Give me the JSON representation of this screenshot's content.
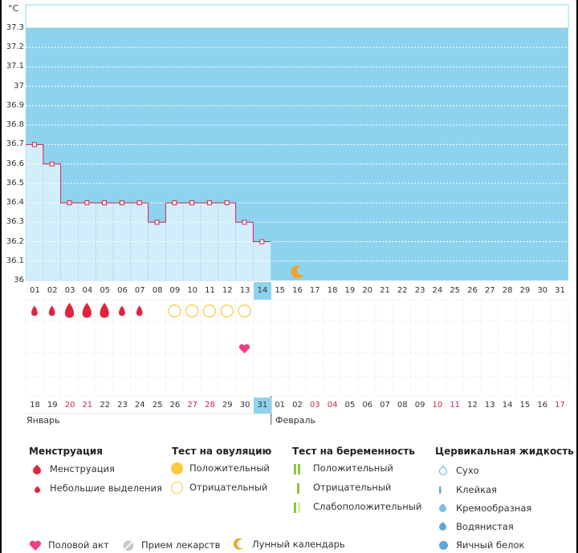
{
  "chart": {
    "unit": "°C",
    "y_labels": [
      "37.3",
      "37.2",
      "37.1",
      "37",
      "36.9",
      "36.8",
      "36.7",
      "36.6",
      "36.5",
      "36.4",
      "36.3",
      "36.2",
      "36.1",
      "36"
    ],
    "cycle_days": [
      "01",
      "02",
      "03",
      "04",
      "05",
      "06",
      "07",
      "08",
      "09",
      "10",
      "11",
      "12",
      "13",
      "14",
      "15",
      "16",
      "17",
      "18",
      "19",
      "20",
      "21",
      "22",
      "23",
      "24",
      "25",
      "26",
      "27",
      "28",
      "29",
      "30",
      "31"
    ],
    "today_cycle_day": "14",
    "dates": [
      "18",
      "19",
      "20",
      "21",
      "22",
      "23",
      "24",
      "25",
      "26",
      "27",
      "28",
      "29",
      "30",
      "31",
      "01",
      "02",
      "03",
      "04",
      "05",
      "06",
      "07",
      "08",
      "09",
      "10",
      "11",
      "12",
      "13",
      "14",
      "15",
      "16",
      "17"
    ],
    "red_date_indices": [
      2,
      3,
      9,
      10,
      16,
      17,
      23,
      24,
      30
    ],
    "today_date": "31",
    "month_jan": "Январь",
    "month_feb": "Февраль",
    "colors": {
      "background": "#8ed3ee",
      "bars": "#d2eefa",
      "line": "#d4224b",
      "drop": "#e0243f",
      "ovulation": "#fbc93d",
      "heart": "#ee3f86"
    }
  },
  "chart_data": {
    "type": "area",
    "ylabel": "°C",
    "ylim": [
      36,
      37.3
    ],
    "x": [
      "01",
      "02",
      "03",
      "04",
      "05",
      "06",
      "07",
      "08",
      "09",
      "10",
      "11",
      "12",
      "13",
      "14"
    ],
    "values": [
      36.7,
      36.6,
      36.4,
      36.4,
      36.4,
      36.4,
      36.4,
      36.3,
      36.4,
      36.4,
      36.4,
      36.4,
      36.3,
      36.2
    ],
    "menstruation": {
      "days": [
        1,
        2,
        3,
        4,
        5,
        6,
        7
      ],
      "large": [
        3,
        4,
        5
      ]
    },
    "ovulation_negative_days": [
      9,
      10,
      11,
      12,
      13
    ],
    "intercourse_day": 13,
    "moon_day": 16
  },
  "legend": {
    "menstruation": {
      "title": "Менструация",
      "items": [
        "Менструация",
        "Небольшие выделения"
      ]
    },
    "ovulation": {
      "title": "Тест на овуляцию",
      "items": [
        "Положительный",
        "Отрицательный"
      ]
    },
    "pregnancy": {
      "title": "Тест на беременность",
      "items": [
        "Положительный",
        "Отрицательный",
        "Слабоположительный"
      ]
    },
    "cervical": {
      "title": "Цервикальная жидкость",
      "items": [
        "Сухо",
        "Клейкая",
        "Кремообразная",
        "Водянистая",
        "Яичный белок"
      ]
    },
    "bottom": {
      "items": [
        "Половой акт",
        "Прием лекарств",
        "Лунный календарь"
      ]
    }
  }
}
